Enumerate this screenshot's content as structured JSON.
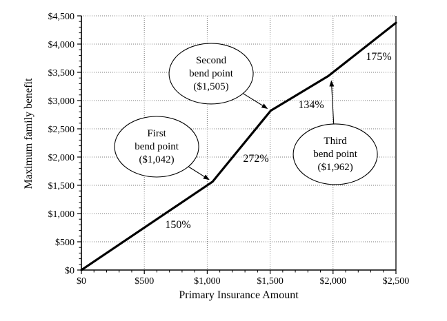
{
  "chart_data": {
    "type": "line",
    "title": "",
    "xlabel": "Primary Insurance Amount",
    "ylabel": "Maximum family benefit",
    "xlim": [
      0,
      2500
    ],
    "ylim": [
      0,
      4500
    ],
    "x_ticks": [
      {
        "value": 0,
        "label": "$0"
      },
      {
        "value": 500,
        "label": "$500"
      },
      {
        "value": 1000,
        "label": "$1,000"
      },
      {
        "value": 1500,
        "label": "$1,500"
      },
      {
        "value": 2000,
        "label": "$2,000"
      },
      {
        "value": 2500,
        "label": "$2,500"
      }
    ],
    "y_ticks": [
      {
        "value": 0,
        "label": "$0"
      },
      {
        "value": 500,
        "label": "$500"
      },
      {
        "value": 1000,
        "label": "$1,000"
      },
      {
        "value": 1500,
        "label": "$1,500"
      },
      {
        "value": 2000,
        "label": "$2,000"
      },
      {
        "value": 2500,
        "label": "$2,500"
      },
      {
        "value": 3000,
        "label": "$3,000"
      },
      {
        "value": 3500,
        "label": "$3,500"
      },
      {
        "value": 4000,
        "label": "$4,000"
      },
      {
        "value": 4500,
        "label": "$4,500"
      }
    ],
    "minor_tick_interval_x": 100,
    "minor_tick_interval_y": 100,
    "grid": {
      "style": "dotted",
      "color": "#777777",
      "x_interval": 500,
      "y_interval": 500
    },
    "colors": {
      "line": "#000000",
      "axis": "#000000",
      "background": "#ffffff"
    },
    "legend": "none",
    "series": [
      {
        "name": "Maximum family benefit vs Primary Insurance Amount",
        "points": [
          {
            "x": 0,
            "y": 0
          },
          {
            "x": 1042,
            "y": 1563
          },
          {
            "x": 1505,
            "y": 2822
          },
          {
            "x": 1962,
            "y": 3434
          },
          {
            "x": 2500,
            "y": 4376
          }
        ]
      }
    ],
    "segment_labels": [
      {
        "text": "150%",
        "x": 768,
        "y": 805
      },
      {
        "text": "272%",
        "x": 1387,
        "y": 1976
      },
      {
        "text": "134%",
        "x": 1826,
        "y": 2927
      },
      {
        "text": "175%",
        "x": 2363,
        "y": 3780
      }
    ],
    "annotations": [
      {
        "lines": [
          "First",
          "bend point",
          "($1,042)"
        ],
        "center_x": 598,
        "center_y": 2183,
        "target_x": 1042,
        "target_y": 1563
      },
      {
        "lines": [
          "Second",
          "bend point",
          "($1,505)"
        ],
        "center_x": 1031,
        "center_y": 3476,
        "target_x": 1505,
        "target_y": 2822
      },
      {
        "lines": [
          "Third",
          "bend point",
          "($1,962)"
        ],
        "center_x": 2018,
        "center_y": 2049,
        "target_x": 1985,
        "target_y": 3420
      }
    ]
  }
}
